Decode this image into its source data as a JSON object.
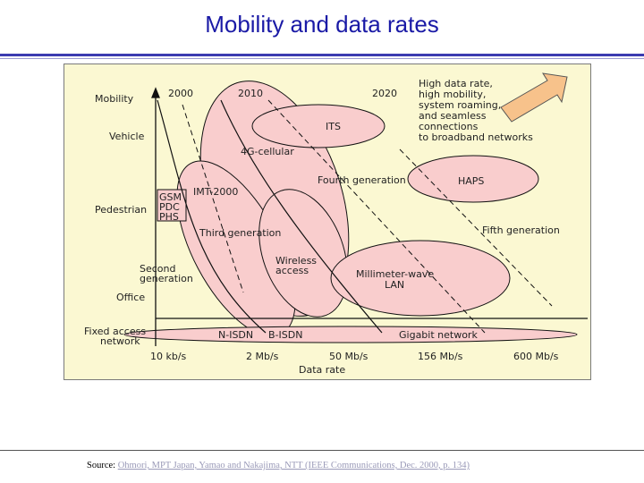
{
  "title": "Mobility and data rates",
  "diagram": {
    "mobility_axis_label": "Mobility",
    "mobility_levels": [
      "Vehicle",
      "Pedestrian",
      "Office"
    ],
    "fixed_access": [
      "Fixed access",
      "network"
    ],
    "second_generation": [
      "Second",
      "generation"
    ],
    "years": [
      "2000",
      "2010",
      "2020"
    ],
    "callout_lines": [
      "High data rate,",
      "high mobility,",
      "system roaming,",
      "and seamless",
      "connections",
      "to broadband networks"
    ],
    "regions": {
      "its": "ITS",
      "cellular_4g": "4G-cellular",
      "fourth_generation": "Fourth generation",
      "haps": "HAPS",
      "imt2000": "IMT-2000",
      "gsm": "GSM",
      "pdc": "PDC",
      "phs": "PHS",
      "third_generation": "Third generation",
      "fifth_generation": "Fifth generation",
      "wireless_access": [
        "Wireless",
        "access"
      ],
      "mmwave_lan": [
        "Millimeter-wave",
        "LAN"
      ],
      "n_isdn": "N-ISDN",
      "b_isdn": "B-ISDN",
      "gigabit_network": "Gigabit network"
    },
    "data_rate_ticks": [
      "10 kb/s",
      "2 Mb/s",
      "50 Mb/s",
      "156 Mb/s",
      "600 Mb/s"
    ],
    "data_rate_axis_label": "Data rate"
  },
  "source": {
    "prefix": "Source:",
    "text": "Ohmori, MPT Japan, Yamao and Nakajima, NTT (IEEE Communications, Dec. 2000, p. 134)"
  },
  "colors": {
    "region_fill": "#f9cdcd",
    "callout_arrow": "#f7c28b",
    "background": "#fbf8d2",
    "title": "#1a1aa6"
  }
}
